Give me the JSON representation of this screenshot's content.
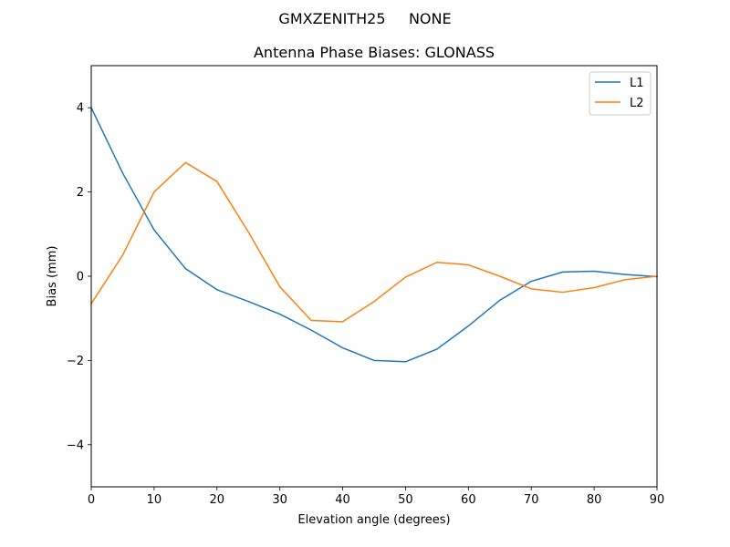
{
  "suptitle": "GMXZENITH25     NONE",
  "chart_data": {
    "type": "line",
    "title": "Antenna Phase Biases: GLONASS",
    "xlabel": "Elevation angle (degrees)",
    "ylabel": "Bias (mm)",
    "xlim": [
      0,
      90
    ],
    "ylim": [
      -5,
      5
    ],
    "xticks": [
      0,
      10,
      20,
      30,
      40,
      50,
      60,
      70,
      80,
      90
    ],
    "yticks": [
      -4,
      -2,
      0,
      2,
      4
    ],
    "xtick_labels": [
      "0",
      "10",
      "20",
      "30",
      "40",
      "50",
      "60",
      "70",
      "80",
      "90"
    ],
    "ytick_labels": [
      "−4",
      "−2",
      "0",
      "2",
      "4"
    ],
    "legend_position": "upper right",
    "grid": false,
    "x": [
      0,
      5,
      10,
      15,
      20,
      25,
      30,
      35,
      40,
      45,
      50,
      55,
      60,
      65,
      70,
      75,
      80,
      85,
      90
    ],
    "series": [
      {
        "name": "L1",
        "color": "#1f77b4",
        "values": [
          4.0,
          2.45,
          1.1,
          0.18,
          -0.32,
          -0.6,
          -0.9,
          -1.28,
          -1.7,
          -2.0,
          -2.03,
          -1.73,
          -1.18,
          -0.57,
          -0.12,
          0.1,
          0.12,
          0.04,
          -0.01
        ]
      },
      {
        "name": "L2",
        "color": "#ff7f0e",
        "values": [
          -0.65,
          0.5,
          2.0,
          2.7,
          2.25,
          1.05,
          -0.25,
          -1.05,
          -1.08,
          -0.6,
          -0.02,
          0.33,
          0.27,
          0.0,
          -0.3,
          -0.38,
          -0.27,
          -0.08,
          0.0
        ]
      }
    ]
  }
}
